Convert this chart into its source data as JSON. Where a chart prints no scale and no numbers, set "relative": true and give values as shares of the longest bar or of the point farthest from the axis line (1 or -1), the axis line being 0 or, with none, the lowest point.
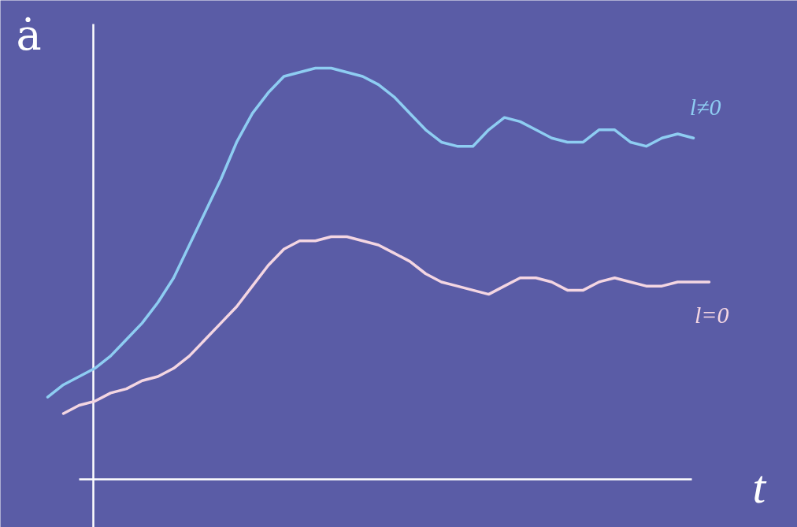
{
  "chart_data": {
    "type": "line",
    "relative": true,
    "xlabel": "t",
    "ylabel": "ȧ",
    "categories": [
      null,
      null,
      null,
      null,
      null,
      null,
      null,
      null,
      null,
      null,
      null,
      null,
      null,
      null,
      null,
      null,
      null,
      null,
      null,
      null,
      null,
      null,
      null,
      null,
      null,
      null,
      null,
      null,
      null,
      null,
      null,
      null,
      null,
      null,
      null,
      null,
      null,
      null,
      null,
      null,
      null,
      null,
      null
    ],
    "series": [
      {
        "name": "l≠0",
        "color": "#8ecdf2",
        "values": [
          0.2,
          0.23,
          0.25,
          0.27,
          0.3,
          0.34,
          0.38,
          0.43,
          0.49,
          0.57,
          0.65,
          0.73,
          0.82,
          0.89,
          0.94,
          0.98,
          0.99,
          1,
          1,
          0.99,
          0.98,
          0.96,
          0.93,
          0.89,
          0.85,
          0.82,
          0.81,
          0.81,
          0.85,
          0.88,
          0.87,
          0.85,
          0.83,
          0.82,
          0.82,
          0.85,
          0.85,
          0.82,
          0.81,
          0.83,
          0.84,
          0.83,
          null
        ]
      },
      {
        "name": "l=0",
        "color": "#f4d6e2",
        "values": [
          null,
          0.16,
          0.18,
          0.19,
          0.21,
          0.22,
          0.24,
          0.25,
          0.27,
          0.3,
          0.34,
          0.38,
          0.42,
          0.47,
          0.52,
          0.56,
          0.58,
          0.58,
          0.59,
          0.59,
          0.58,
          0.57,
          0.55,
          0.53,
          0.5,
          0.48,
          0.47,
          0.46,
          0.45,
          0.47,
          0.49,
          0.49,
          0.48,
          0.46,
          0.46,
          0.48,
          0.49,
          0.48,
          0.47,
          0.47,
          0.48,
          0.48,
          0.48
        ]
      }
    ]
  }
}
